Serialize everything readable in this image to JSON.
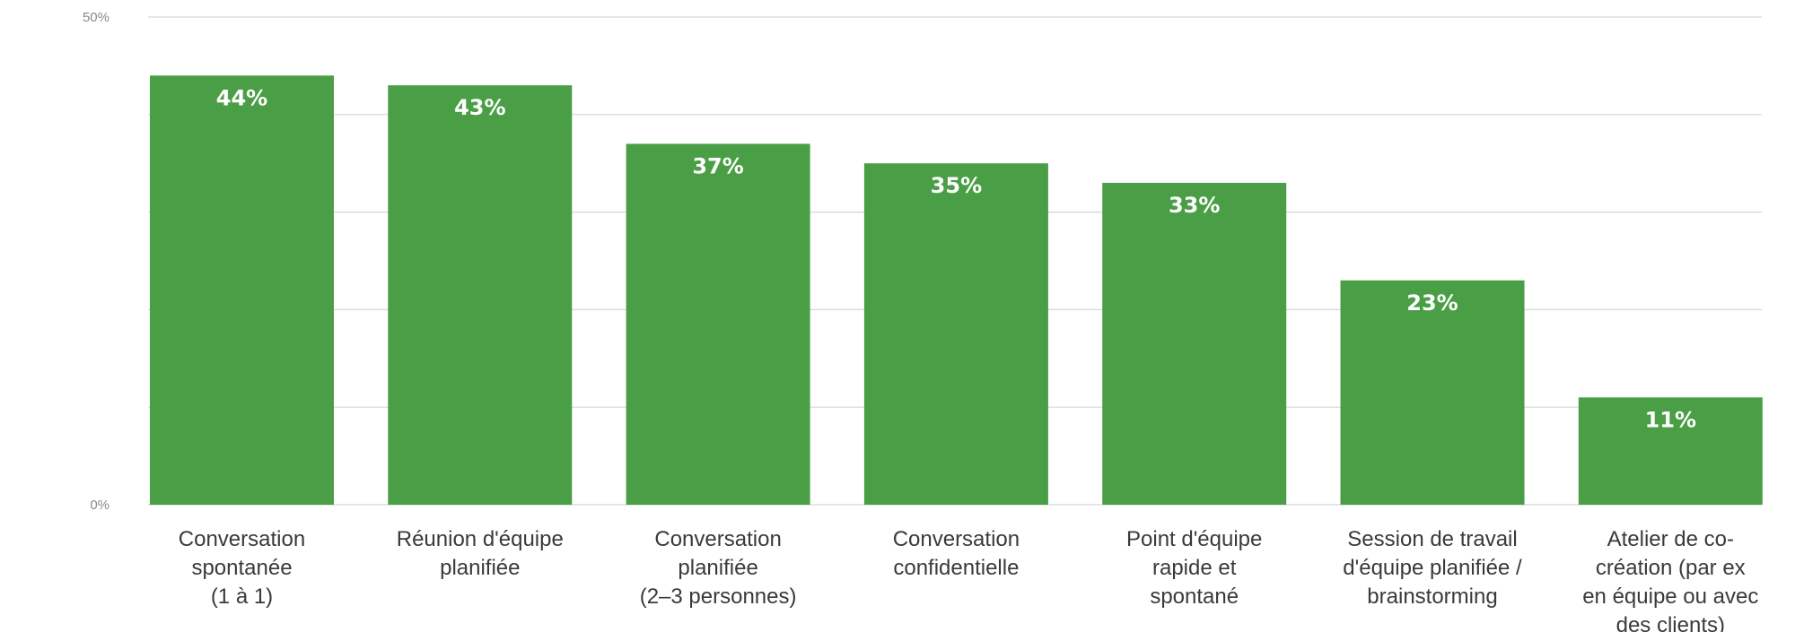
{
  "chart_data": {
    "type": "bar",
    "categories": [
      "Conversation spontanée (1 à 1)",
      "Réunion d'équipe planifiée",
      "Conversation planifiée (2–3 personnes)",
      "Conversation confidentielle",
      "Point d'équipe rapide et spontané",
      "Session de travail d'équipe planifiée / brainstorming",
      "Atelier de co-création (par ex en équipe ou avec des clients)"
    ],
    "category_lines": [
      [
        "Conversation",
        "spontanée",
        "(1 à 1)"
      ],
      [
        "Réunion d'équipe",
        "planifiée"
      ],
      [
        "Conversation",
        "planifiée",
        "(2–3 personnes)"
      ],
      [
        "Conversation",
        "confidentielle"
      ],
      [
        "Point d'équipe",
        "rapide et",
        "spontané"
      ],
      [
        "Session de travail",
        "d'équipe planifiée /",
        "brainstorming"
      ],
      [
        "Atelier de co-",
        "création (par ex",
        "en équipe ou avec",
        "des clients)"
      ]
    ],
    "values": [
      44,
      43,
      37,
      35,
      33,
      23,
      11
    ],
    "value_labels": [
      "44%",
      "43%",
      "37%",
      "35%",
      "33%",
      "23%",
      "11%"
    ],
    "ytick_labels": [
      "0%",
      "50%"
    ],
    "ylim": [
      0,
      50
    ],
    "grid": true,
    "bar_color": "#4a9e45",
    "grid_color": "#d6d6d6"
  }
}
